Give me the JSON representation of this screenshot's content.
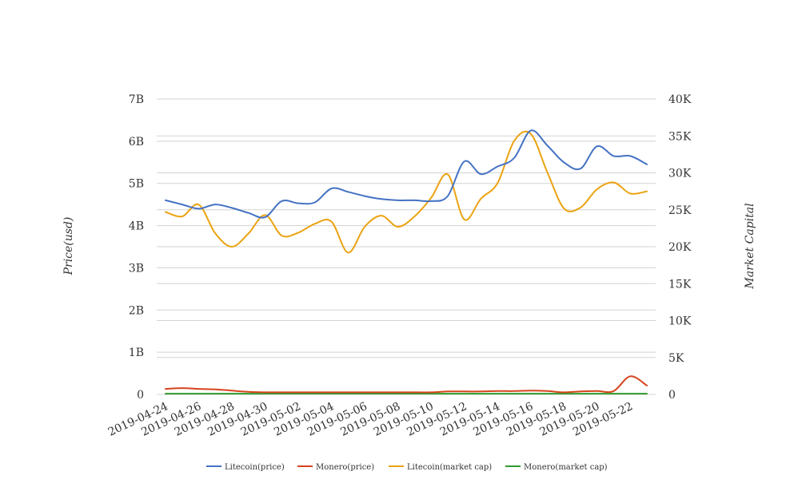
{
  "chart_data": {
    "type": "line",
    "ylabel": "Price(usd)",
    "y2label": "Market Capital",
    "ylim": [
      0,
      7000000000
    ],
    "y2lim": [
      0,
      40000
    ],
    "yticks": [
      "0",
      "1B",
      "2B",
      "3B",
      "4B",
      "5B",
      "6B",
      "7B"
    ],
    "y2ticks": [
      "0",
      "5K",
      "10K",
      "15K",
      "20K",
      "25K",
      "30K",
      "35K",
      "40K"
    ],
    "x": [
      "2019-04-24",
      "2019-04-25",
      "2019-04-26",
      "2019-04-27",
      "2019-04-28",
      "2019-04-29",
      "2019-04-30",
      "2019-05-01",
      "2019-05-02",
      "2019-05-03",
      "2019-05-04",
      "2019-05-05",
      "2019-05-06",
      "2019-05-07",
      "2019-05-08",
      "2019-05-09",
      "2019-05-10",
      "2019-05-11",
      "2019-05-12",
      "2019-05-13",
      "2019-05-14",
      "2019-05-15",
      "2019-05-16",
      "2019-05-17",
      "2019-05-18",
      "2019-05-19",
      "2019-05-20",
      "2019-05-21",
      "2019-05-22",
      "2019-05-23"
    ],
    "xticks": [
      "2019-04-24",
      "2019-04-26",
      "2019-04-28",
      "2019-04-30",
      "2019-05-02",
      "2019-05-04",
      "2019-05-06",
      "2019-05-08",
      "2019-05-10",
      "2019-05-12",
      "2019-05-14",
      "2019-05-16",
      "2019-05-18",
      "2019-05-20",
      "2019-05-22"
    ],
    "series": [
      {
        "name": "Litecoin(price)",
        "axis": "left",
        "color": "#4472c4",
        "values": [
          4600000000.0,
          4500000000.0,
          4400000000.0,
          4500000000.0,
          4420000000.0,
          4300000000.0,
          4200000000.0,
          4580000000.0,
          4530000000.0,
          4550000000.0,
          4880000000.0,
          4800000000.0,
          4700000000.0,
          4630000000.0,
          4600000000.0,
          4600000000.0,
          4580000000.0,
          4700000000.0,
          5520000000.0,
          5220000000.0,
          5400000000.0,
          5600000000.0,
          6250000000.0,
          5900000000.0,
          5500000000.0,
          5350000000.0,
          5880000000.0,
          5650000000.0,
          5650000000.0,
          5450000000.0
        ]
      },
      {
        "name": "Monero(price)",
        "axis": "left",
        "color": "#d5441c",
        "values": [
          130000000.0,
          150000000.0,
          130000000.0,
          120000000.0,
          90000000.0,
          60000000.0,
          50000000.0,
          50000000.0,
          50000000.0,
          50000000.0,
          50000000.0,
          50000000.0,
          50000000.0,
          50000000.0,
          50000000.0,
          50000000.0,
          50000000.0,
          70000000.0,
          70000000.0,
          70000000.0,
          80000000.0,
          80000000.0,
          90000000.0,
          80000000.0,
          50000000.0,
          70000000.0,
          80000000.0,
          80000000.0,
          430000000.0,
          210000000.0
        ]
      },
      {
        "name": "Litecoin(market cap)",
        "axis": "right",
        "color": "#eba312",
        "values": [
          24700,
          24100,
          25700,
          21800,
          20000,
          21800,
          24300,
          21500,
          21900,
          23100,
          23400,
          19200,
          22700,
          24200,
          22700,
          24100,
          26600,
          29800,
          23700,
          26500,
          28600,
          34300,
          35300,
          30100,
          25200,
          25300,
          27800,
          28700,
          27200,
          27500
        ]
      },
      {
        "name": "Monero(market cap)",
        "axis": "right",
        "color": "#2e9a2e",
        "values": [
          100,
          100,
          100,
          100,
          100,
          100,
          100,
          100,
          100,
          100,
          100,
          100,
          100,
          100,
          100,
          100,
          100,
          100,
          100,
          100,
          100,
          100,
          100,
          100,
          100,
          100,
          100,
          100,
          100,
          100
        ]
      }
    ],
    "legend": "bottom-center"
  }
}
